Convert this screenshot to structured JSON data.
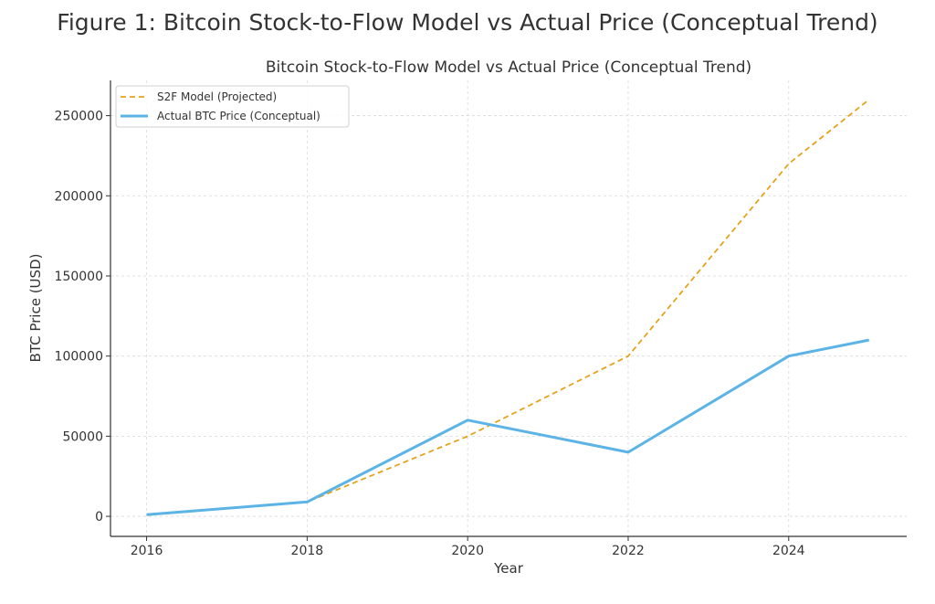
{
  "figure_title": "Figure 1: Bitcoin Stock-to-Flow Model vs Actual Price (Conceptual Trend)",
  "chart_data": {
    "type": "line",
    "title": "Bitcoin Stock-to-Flow Model vs Actual Price (Conceptual Trend)",
    "xlabel": "Year",
    "ylabel": "BTC Price (USD)",
    "x": [
      2016,
      2018,
      2020,
      2022,
      2024,
      2025
    ],
    "xlim": [
      2015.55,
      2025.47
    ],
    "ylim": [
      -12500,
      272000
    ],
    "xticks": [
      2016,
      2018,
      2020,
      2022,
      2024
    ],
    "yticks": [
      0,
      50000,
      100000,
      150000,
      200000,
      250000
    ],
    "grid": true,
    "legend_position": "top-left",
    "series": [
      {
        "name": "S2F Model (Projected)",
        "values": [
          1000,
          9000,
          50000,
          100000,
          220000,
          260000
        ],
        "color": "#E6A21A",
        "style": "dashed"
      },
      {
        "name": "Actual BTC Price (Conceptual)",
        "values": [
          1000,
          9000,
          60000,
          40000,
          100000,
          110000
        ],
        "color": "#5BB4E5",
        "style": "solid"
      }
    ]
  }
}
